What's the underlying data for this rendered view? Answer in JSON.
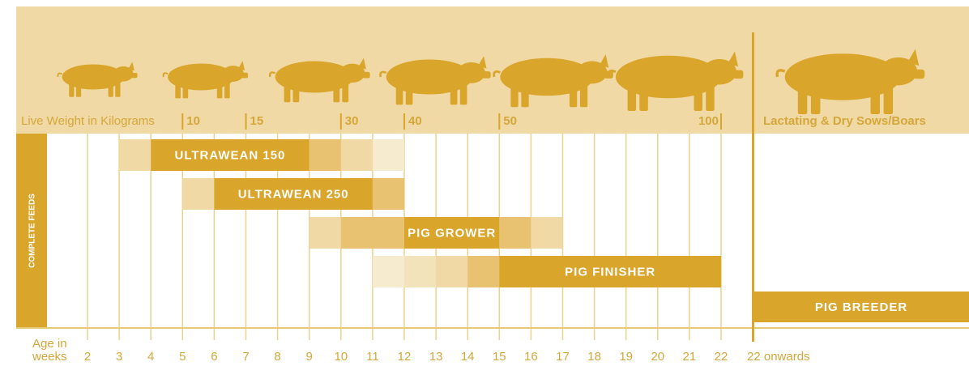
{
  "header": {
    "weight_title": "Live Weight in Kilograms",
    "sows_title": "Lactating & Dry Sows/Boars"
  },
  "side_label": "COMPLETE FEEDS",
  "weight_marks": [
    {
      "label": "10",
      "week": 5
    },
    {
      "label": "15",
      "week": 7
    },
    {
      "label": "30",
      "week": 10
    },
    {
      "label": "40",
      "week": 12
    },
    {
      "label": "50",
      "week": 15
    },
    {
      "label": "100",
      "week": 22
    }
  ],
  "weeks": [
    2,
    3,
    4,
    5,
    6,
    7,
    8,
    9,
    10,
    11,
    12,
    13,
    14,
    15,
    16,
    17,
    18,
    19,
    20,
    21,
    22
  ],
  "axis_label": [
    "Age in",
    "weeks"
  ],
  "onwards_label": "22 onwards",
  "feeds": [
    {
      "name": "ULTRAWEAN 150",
      "segments": [
        {
          "from": 3,
          "to": 4,
          "color": "#f0d9a4"
        },
        {
          "from": 4,
          "to": 9,
          "color": "#d9a52b"
        },
        {
          "from": 9,
          "to": 10,
          "color": "#e8c270"
        },
        {
          "from": 10,
          "to": 11,
          "color": "#f0d9a4"
        },
        {
          "from": 11,
          "to": 12,
          "color": "#f7ebcf"
        }
      ]
    },
    {
      "name": "ULTRAWEAN 250",
      "segments": [
        {
          "from": 5,
          "to": 6,
          "color": "#f0d9a4"
        },
        {
          "from": 6,
          "to": 11,
          "color": "#d9a52b"
        },
        {
          "from": 11,
          "to": 12,
          "color": "#e8c270"
        }
      ]
    },
    {
      "name": "PIG GROWER",
      "segments": [
        {
          "from": 9,
          "to": 10,
          "color": "#f0d9a4"
        },
        {
          "from": 10,
          "to": 12,
          "color": "#e8c270"
        },
        {
          "from": 12,
          "to": 15,
          "color": "#d9a52b"
        },
        {
          "from": 15,
          "to": 16,
          "color": "#e8c270"
        },
        {
          "from": 16,
          "to": 17,
          "color": "#f0d9a4"
        }
      ]
    },
    {
      "name": "PIG FINISHER",
      "segments": [
        {
          "from": 11,
          "to": 12,
          "color": "#f7ebcf"
        },
        {
          "from": 12,
          "to": 13,
          "color": "#f3e3bb"
        },
        {
          "from": 13,
          "to": 14,
          "color": "#f0d9a4"
        },
        {
          "from": 14,
          "to": 15,
          "color": "#e8c270"
        },
        {
          "from": 15,
          "to": 22,
          "color": "#d9a52b"
        }
      ]
    }
  ],
  "breeder": {
    "name": "PIG BREEDER",
    "color": "#d9a52b"
  }
}
